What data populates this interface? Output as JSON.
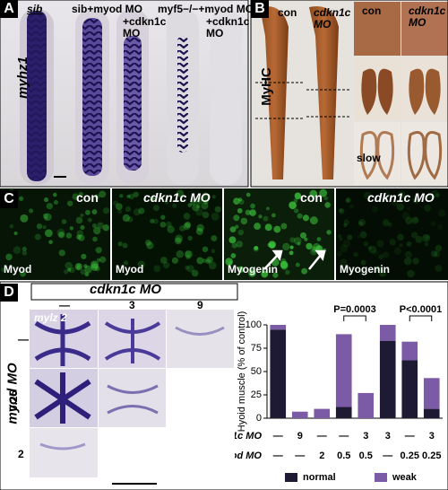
{
  "panel_a": {
    "letter": "A",
    "gene": "myhz1",
    "labels": [
      "sib",
      "sib+myod MO",
      "+cdkn1c MO",
      "myf5−/−+myod MO",
      "+cdkn1c MO"
    ]
  },
  "panel_b": {
    "letter": "B",
    "stain": "MyHC",
    "labels": [
      "con",
      "cdkn1c MO",
      "con",
      "cdkn1c MO"
    ],
    "note": "slow"
  },
  "panel_c": {
    "letter": "C",
    "conditions": [
      "con",
      "cdkn1c MO",
      "con",
      "cdkn1c MO"
    ],
    "stains": [
      "Myod",
      "Myod",
      "Myogenin",
      "Myogenin"
    ]
  },
  "panel_d": {
    "letter": "D",
    "header": "cdkn1c MO",
    "columns": [
      "—",
      "3",
      "9"
    ],
    "row_title": "myod MO",
    "rows": [
      "—",
      "0.25",
      "2"
    ],
    "gene": "mylz 2"
  },
  "chart_data": {
    "type": "bar",
    "ylabel": "Hyoid muscle (% of control)",
    "ylim": [
      0,
      100
    ],
    "yticks": [
      0,
      25,
      50,
      75,
      100
    ],
    "categories": [
      null,
      null,
      null,
      null,
      null,
      null,
      null,
      null
    ],
    "series": [
      {
        "name": "normal",
        "color": "#1e1a33",
        "values": [
          95,
          0,
          0,
          12,
          0,
          83,
          62,
          10
        ]
      },
      {
        "name": "weak",
        "color": "#7b5aa6",
        "values": [
          5,
          7,
          10,
          78,
          27,
          17,
          20,
          33
        ]
      }
    ],
    "stacked": true,
    "table": [
      {
        "label": "cdkn1c MO",
        "values": [
          "—",
          "9",
          "—",
          "—",
          "3",
          "3",
          "—",
          "3"
        ]
      },
      {
        "label": "myod MO",
        "values": [
          "—",
          "—",
          "2",
          "0.5",
          "0.5",
          "—",
          "0.25",
          "0.25"
        ]
      }
    ],
    "annotations": [
      {
        "text": "P=0.0003",
        "from": 3,
        "to": 4
      },
      {
        "text": "P<0.0001",
        "from": 6,
        "to": 7
      }
    ]
  }
}
